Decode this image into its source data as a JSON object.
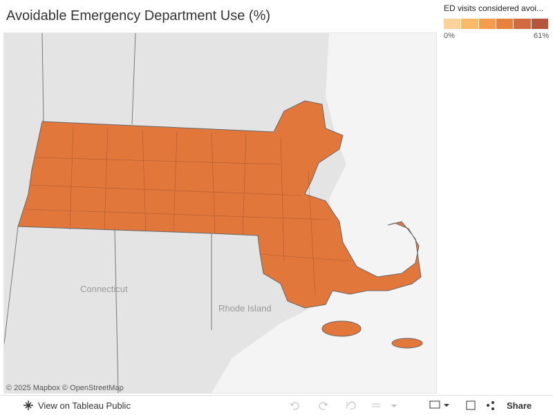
{
  "header": {
    "title": "Avoidable Emergency Department Use (%)"
  },
  "legend": {
    "title": "ED visits considered avoi...",
    "colors": [
      "#fdd29a",
      "#f8b968",
      "#f39c4c",
      "#e8803e",
      "#d06a41",
      "#b4553c"
    ],
    "min_label": "0%",
    "max_label": "61%"
  },
  "map": {
    "fill": "#e2773c",
    "place_labels": [
      "Connecticut",
      "Rhode Island"
    ],
    "attribution": "© 2025 Mapbox  © OpenStreetMap"
  },
  "toolbar": {
    "view_link": "View on Tableau Public",
    "share": "Share"
  }
}
